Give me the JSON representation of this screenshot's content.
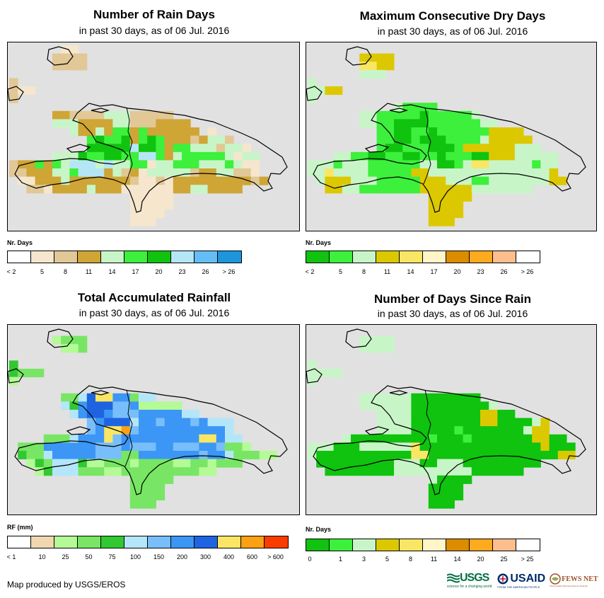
{
  "panels": [
    {
      "title": "Number of Rain Days",
      "subtitle": "in past 30 days, as of 06 Jul. 2016",
      "legend_title": "Nr. Days",
      "legend_colors": [
        "#ffffff",
        "#f5e6cd",
        "#e1c896",
        "#cfa535",
        "#c8f5c8",
        "#3cf03c",
        "#0fc30f",
        "#b4e6f5",
        "#64bef5",
        "#1e96dc"
      ],
      "legend_labels": [
        "< 2",
        "5",
        "8",
        "11",
        "14",
        "17",
        "20",
        "23",
        "26",
        "> 26"
      ],
      "palette": {
        "D": "#cfa535",
        "M": "#e1c896",
        "L": "#f5e6cd",
        "P": "#c8f5c8",
        "G": "#3cf03c",
        "E": "#0fc30f",
        "C": "#b4e6f5",
        "B": "#64bef5"
      }
    },
    {
      "title": "Maximum Consecutive Dry Days",
      "subtitle": "in past 30 days, as of 06 Jul. 2016",
      "legend_title": "Nr. Days",
      "legend_colors": [
        "#0fc30f",
        "#3cf03c",
        "#c8f5c8",
        "#dcc800",
        "#fae664",
        "#fff5c8",
        "#dc8c00",
        "#fcaa1e",
        "#fcbe8c",
        "#ffffff"
      ],
      "legend_labels": [
        "< 2",
        "5",
        "8",
        "11",
        "14",
        "17",
        "20",
        "23",
        "26",
        "> 26"
      ],
      "palette": {
        "E": "#0fc30f",
        "G": "#3cf03c",
        "P": "#c8f5c8",
        "Y": "#dcc800",
        "L": "#fae664",
        "W": "#fff5c8"
      }
    },
    {
      "title": "Total Accumulated Rainfall",
      "subtitle": "in past 30 days, as of 06 Jul. 2016",
      "legend_title": "RF (mm)",
      "legend_colors": [
        "#ffffff",
        "#f0d7af",
        "#b4fa96",
        "#78e664",
        "#32c832",
        "#b4e6fa",
        "#78befa",
        "#3c96f5",
        "#1e64e1",
        "#fae664",
        "#fca014",
        "#fa3c00"
      ],
      "legend_labels": [
        "< 1",
        "10",
        "25",
        "50",
        "75",
        "100",
        "150",
        "200",
        "300",
        "400",
        "600",
        "> 600"
      ],
      "palette": {
        "a": "#b4fa96",
        "b": "#78e664",
        "g": "#32c832",
        "c": "#b4e6fa",
        "l": "#78befa",
        "m": "#3c96f5",
        "d": "#1e64e1",
        "y": "#fae664",
        "o": "#fca014"
      }
    },
    {
      "title": "Number of Days Since Rain",
      "subtitle": "in past 30 days, as of 06 Jul. 2016",
      "legend_title": "Nr. Days",
      "legend_colors": [
        "#0fc30f",
        "#3cf03c",
        "#c8f5c8",
        "#dcc800",
        "#fae664",
        "#fff5c8",
        "#dc8c00",
        "#fcaa1e",
        "#fcbe8c",
        "#ffffff"
      ],
      "legend_labels": [
        "0",
        "1",
        "3",
        "5",
        "8",
        "11",
        "14",
        "20",
        "25",
        "> 25"
      ],
      "palette": {
        "E": "#0fc30f",
        "G": "#3cf03c",
        "P": "#c8f5c8",
        "Y": "#dcc800",
        "L": "#fae664"
      }
    }
  ],
  "footer": "Map produced by USGS/EROS",
  "logos": {
    "usgs": "USGS",
    "usgs_tagline": "science for a changing world",
    "usaid": "USAID",
    "usaid_tagline": "FROM THE AMERICAN PEOPLE",
    "fewsnet": "FEWS NET",
    "fewsnet_tagline": "Famine Early Warning Systems Network"
  },
  "chart_data": [
    {
      "type": "heatmap",
      "title": "Number of Rain Days",
      "subtitle": "in past 30 days, as of 06 Jul. 2016",
      "legend": {
        "title": "Nr. Days",
        "bins": [
          "< 2",
          "5",
          "8",
          "11",
          "14",
          "17",
          "20",
          "23",
          "26",
          "> 26"
        ]
      },
      "cell_rows": [
        "......LL........................",
        ".....MMMM.......................",
        ".....MMMM.......................",
        "................................",
        "M...............................",
        "MLL.............................",
        "M...............................",
        "................................",
        ".....DDMMMMPPPMMMMM.............",
        ".....PPPDDDDPPMMMDDDD...........",
        ".......PDDPDGGDGDDDDDD.L........",
        ".........GEGGEDGEGDDDMDPPM......",
        ".........EEEEECEEGDGGPPPMPPL....",
        ".....PPPEGGEEGGCCGDPGGGGGPLPP...",
        "MDDGDGPCCCPCPPGGLPPGGGPPPGPLL...",
        "MMDDDPPGCCCDPMDLPPPPPMDDPPMML...",
        ".LLDDDPDDDDDDDMLLMLDDDDDDDDDMD..",
        "..MMLDDDDPDDDLLLLLLDDPPDDDD.....",
        "..............LLLLL.............",
        "..............LLLLL.............",
        "..............LLLL..............",
        "..............LLL..............."
      ]
    },
    {
      "type": "heatmap",
      "title": "Maximum Consecutive Dry Days",
      "subtitle": "in past 30 days, as of 06 Jul. 2016",
      "legend": {
        "title": "Nr. Days",
        "bins": [
          "< 2",
          "5",
          "8",
          "11",
          "14",
          "17",
          "20",
          "23",
          "26",
          "> 26"
        ]
      },
      "cell_rows": [
        "................................",
        "......YYYY......................",
        "......LLYY......................",
        "......PPP.......................",
        "P...............................",
        "PPYY............................",
        "P...............................",
        "..........PGGGG.................",
        "......PPGGGGGEGGGGGP............",
        "......PPGGEEEEGGGGGGPP..........",
        "........GGEEGGEGGGGGGYYYY.......",
        "........GGEEGEEEGGGGPYYYYY......",
        "........GEEGGGEEEGYYYYYYPPP.....",
        "...PPGGEEGGEEGGEGGGEEYYYPPPPP...",
        "PPPGPPPGGGGGGPPEEGPLLPPPPPGPP...",
        "PPLPPPPGGGGGYYPPPPPPPPPPPPPPY...",
        ".PYYYPPPGGGGGYYYPPPGGPPPPPPPYY..",
        "..YYPPGGGGGGGYYYYYYPPPPPPP......",
        "..............YYYYY.............",
        "..............YYYY..............",
        "..............YYYY..............",
        "..............YYY..............."
      ]
    },
    {
      "type": "heatmap",
      "title": "Total Accumulated Rainfall",
      "subtitle": "in past 30 days, as of 06 Jul. 2016",
      "legend": {
        "title": "RF (mm)",
        "bins": [
          "< 1",
          "10",
          "25",
          "50",
          "75",
          "100",
          "150",
          "200",
          "300",
          "400",
          "600",
          "> 600"
        ]
      },
      "cell_rows": [
        "................................",
        ".....abbb.......................",
        "......aab.......................",
        "................................",
        "g...............................",
        "gbbb............................",
        "a...............................",
        "................................",
        "......bbcdyymmbcc...............",
        "......cgmdddllmaaaaa............",
        ".......cmddmlllmmmmmcc..........",
        ".........lmdddcmmlmmmlmccc......",
        ".........lmyyolmmmmmmmmmmc......",
        "....bbbcmmmylmmmmmmmmmyymcc.....",
        ".bbbmmmmmmlllmlllmmlllmmlbba....",
        ".gbbcmmmmmlllbbmmmmmmmlmmcbbbaa.",
        "..agbcccgaabbbabbbbaabbabbb.....",
        "...agcccbbbaabbbbbbbbbaa........",
        "..............bbbbb.............",
        "..............bbbb..............",
        "..............bbbb..............",
        "..............bbb..............."
      ]
    },
    {
      "type": "heatmap",
      "title": "Number of Days Since Rain",
      "subtitle": "in past 30 days, as of 06 Jul. 2016",
      "legend": {
        "title": "Nr. Days",
        "bins": [
          "0",
          "1",
          "3",
          "5",
          "8",
          "11",
          "14",
          "20",
          "25",
          "> 25"
        ]
      },
      "cell_rows": [
        "................................",
        "......PPPP......................",
        "......PPPP......................",
        "................................",
        "P...............................",
        "PPPP............................",
        "P...............................",
        "................................",
        "......PPPPPPEEEEEEEE............",
        "......PPPPPPEEEEEEEEEP..........",
        "........PPPPEEEEEEEEYYEE........",
        "........PPPPEEEEEEEEYYEEEEPY....",
        "........PPPPEEEEEGEEEEEEEPYY....",
        "....PEEEEEEEEEGEEEGEEEEEEEYYEE..",
        "PPPEEEPPPPPPLEEEEEEEEEEEEEEYEEE.",
        "PEEEEEEEEEEELLEEEEEEEEEEEEEEEYY.",
        ".EEEEEEEEEPPPEEPPPEEEEEEEEE.....",
        "..EEEEEEEEPPPPPPPPPEEEEEE.......",
        "..............PEEEE.............",
        "..............EEEE..............",
        "..............EEEE..............",
        "..............EEE..............."
      ]
    }
  ]
}
